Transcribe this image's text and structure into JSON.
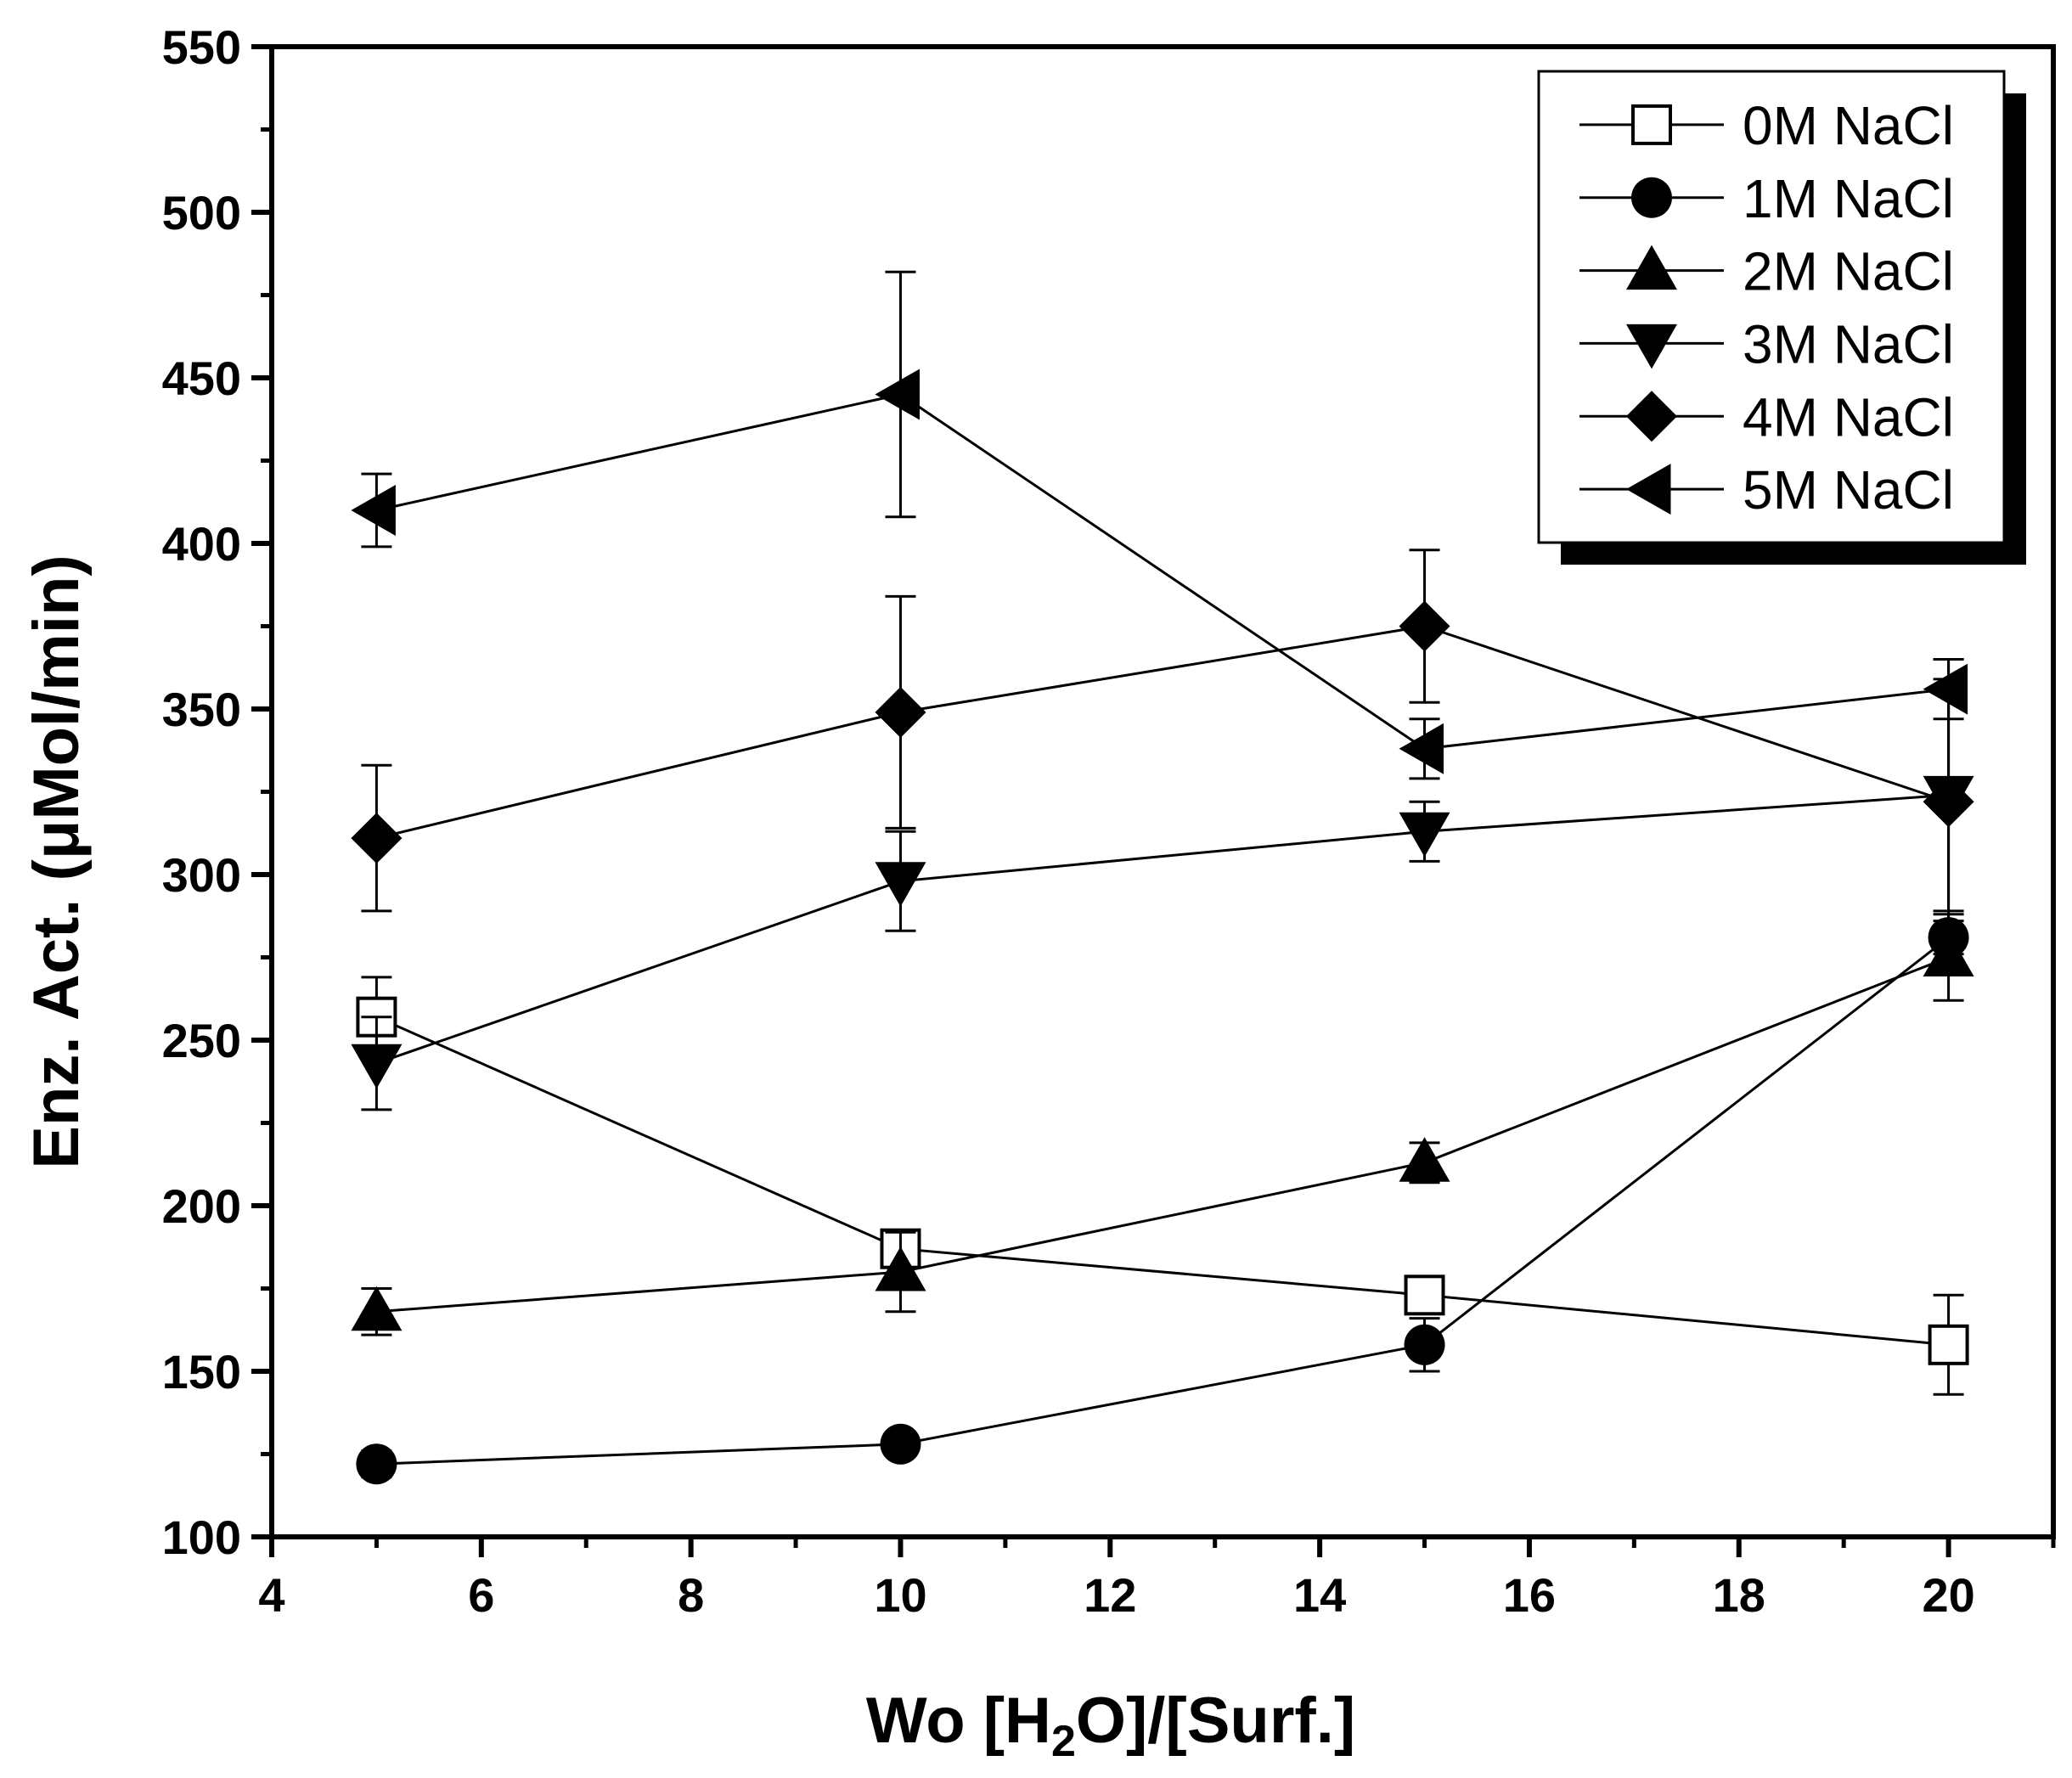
{
  "chart_data": {
    "type": "line",
    "title": "",
    "xlabel": {
      "prefix": "Wo [H",
      "subscript": "2",
      "suffix": "O]/[Surf.]"
    },
    "ylabel": "Enz. Act. (μMol/min)",
    "xlim": [
      4,
      21
    ],
    "ylim": [
      100,
      550
    ],
    "x_ticks": [
      4,
      6,
      8,
      10,
      12,
      14,
      16,
      18,
      20
    ],
    "y_ticks": [
      100,
      150,
      200,
      250,
      300,
      350,
      400,
      450,
      500,
      550
    ],
    "x": [
      5,
      10,
      15,
      20
    ],
    "legend_position": "top-right",
    "series": [
      {
        "name": "0M NaCl",
        "marker": "open-square",
        "values": [
          257,
          187,
          173,
          158
        ],
        "errors": [
          12,
          3,
          3,
          15
        ]
      },
      {
        "name": "1M NaCl",
        "marker": "circle",
        "values": [
          122,
          128,
          158,
          281
        ],
        "errors": [
          4,
          2,
          8,
          5
        ]
      },
      {
        "name": "2M NaCl",
        "marker": "triangle-up",
        "values": [
          168,
          180,
          213,
          275
        ],
        "errors": [
          7,
          12,
          6,
          13
        ]
      },
      {
        "name": "3M NaCl",
        "marker": "triangle-down",
        "values": [
          243,
          298,
          313,
          324
        ],
        "errors": [
          14,
          15,
          9,
          35
        ]
      },
      {
        "name": "4M NaCl",
        "marker": "diamond",
        "values": [
          311,
          349,
          375,
          322
        ],
        "errors": [
          22,
          35,
          23,
          43
        ]
      },
      {
        "name": "5M NaCl",
        "marker": "triangle-left",
        "values": [
          410,
          445,
          338,
          356
        ],
        "errors": [
          11,
          37,
          9,
          9
        ]
      }
    ]
  }
}
